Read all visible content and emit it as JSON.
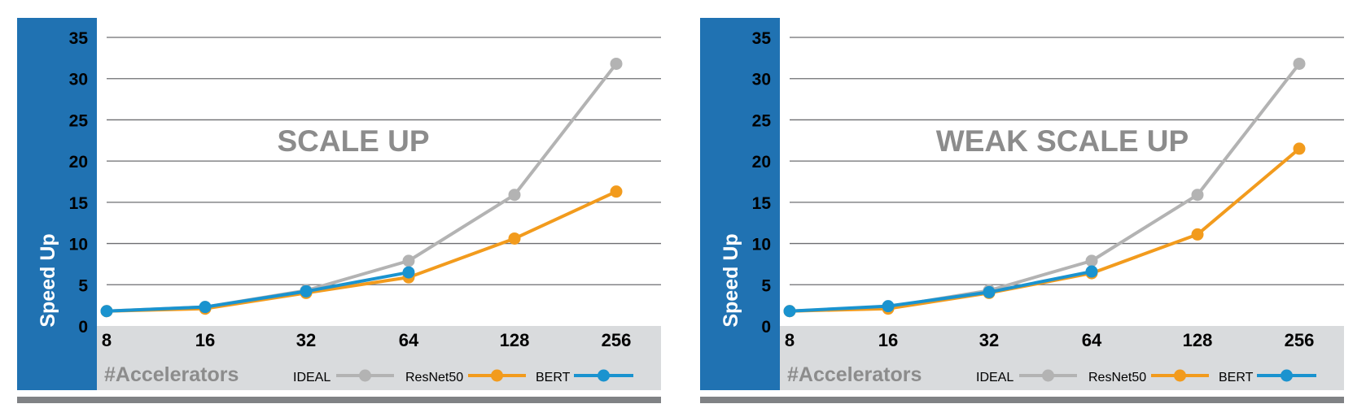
{
  "colors": {
    "blue_band": "#2072b2",
    "footer_band": "#d9dbdd",
    "bottom_bar": "#808285",
    "gridline": "#6d6e71",
    "title": "#8c8c8c",
    "xaxis_title": "#8c8c8c"
  },
  "chart_data": [
    {
      "type": "line",
      "title": "SCALE UP",
      "ylabel": "Speed Up",
      "xlabel": "#Accelerators",
      "categories": [
        "8",
        "16",
        "32",
        "64",
        "128",
        "256"
      ],
      "ylim": [
        0,
        35
      ],
      "yticks": [
        "0",
        "5",
        "10",
        "15",
        "20",
        "25",
        "30",
        "35"
      ],
      "grid": true,
      "legend_position": "bottom",
      "series": [
        {
          "name": "IDEAL",
          "color": "#b3b3b3",
          "values": [
            1.8,
            2.3,
            4.3,
            7.9,
            15.9,
            31.8
          ]
        },
        {
          "name": "ResNet50",
          "color": "#f29b1d",
          "values": [
            1.8,
            2.1,
            4.0,
            5.9,
            10.6,
            16.3
          ]
        },
        {
          "name": "BERT",
          "color": "#1a93cf",
          "values": [
            1.8,
            2.3,
            4.2,
            6.5,
            null,
            null
          ]
        }
      ]
    },
    {
      "type": "line",
      "title": "WEAK SCALE UP",
      "ylabel": "Speed Up",
      "xlabel": "#Accelerators",
      "categories": [
        "8",
        "16",
        "32",
        "64",
        "128",
        "256"
      ],
      "ylim": [
        0,
        35
      ],
      "yticks": [
        "0",
        "5",
        "10",
        "15",
        "20",
        "25",
        "30",
        "35"
      ],
      "grid": true,
      "legend_position": "bottom",
      "series": [
        {
          "name": "IDEAL",
          "color": "#b3b3b3",
          "values": [
            1.8,
            2.3,
            4.3,
            7.9,
            15.9,
            31.8
          ]
        },
        {
          "name": "ResNet50",
          "color": "#f29b1d",
          "values": [
            1.8,
            2.1,
            4.0,
            6.4,
            11.1,
            21.5
          ]
        },
        {
          "name": "BERT",
          "color": "#1a93cf",
          "values": [
            1.8,
            2.4,
            4.1,
            6.6,
            null,
            null
          ]
        }
      ]
    }
  ]
}
